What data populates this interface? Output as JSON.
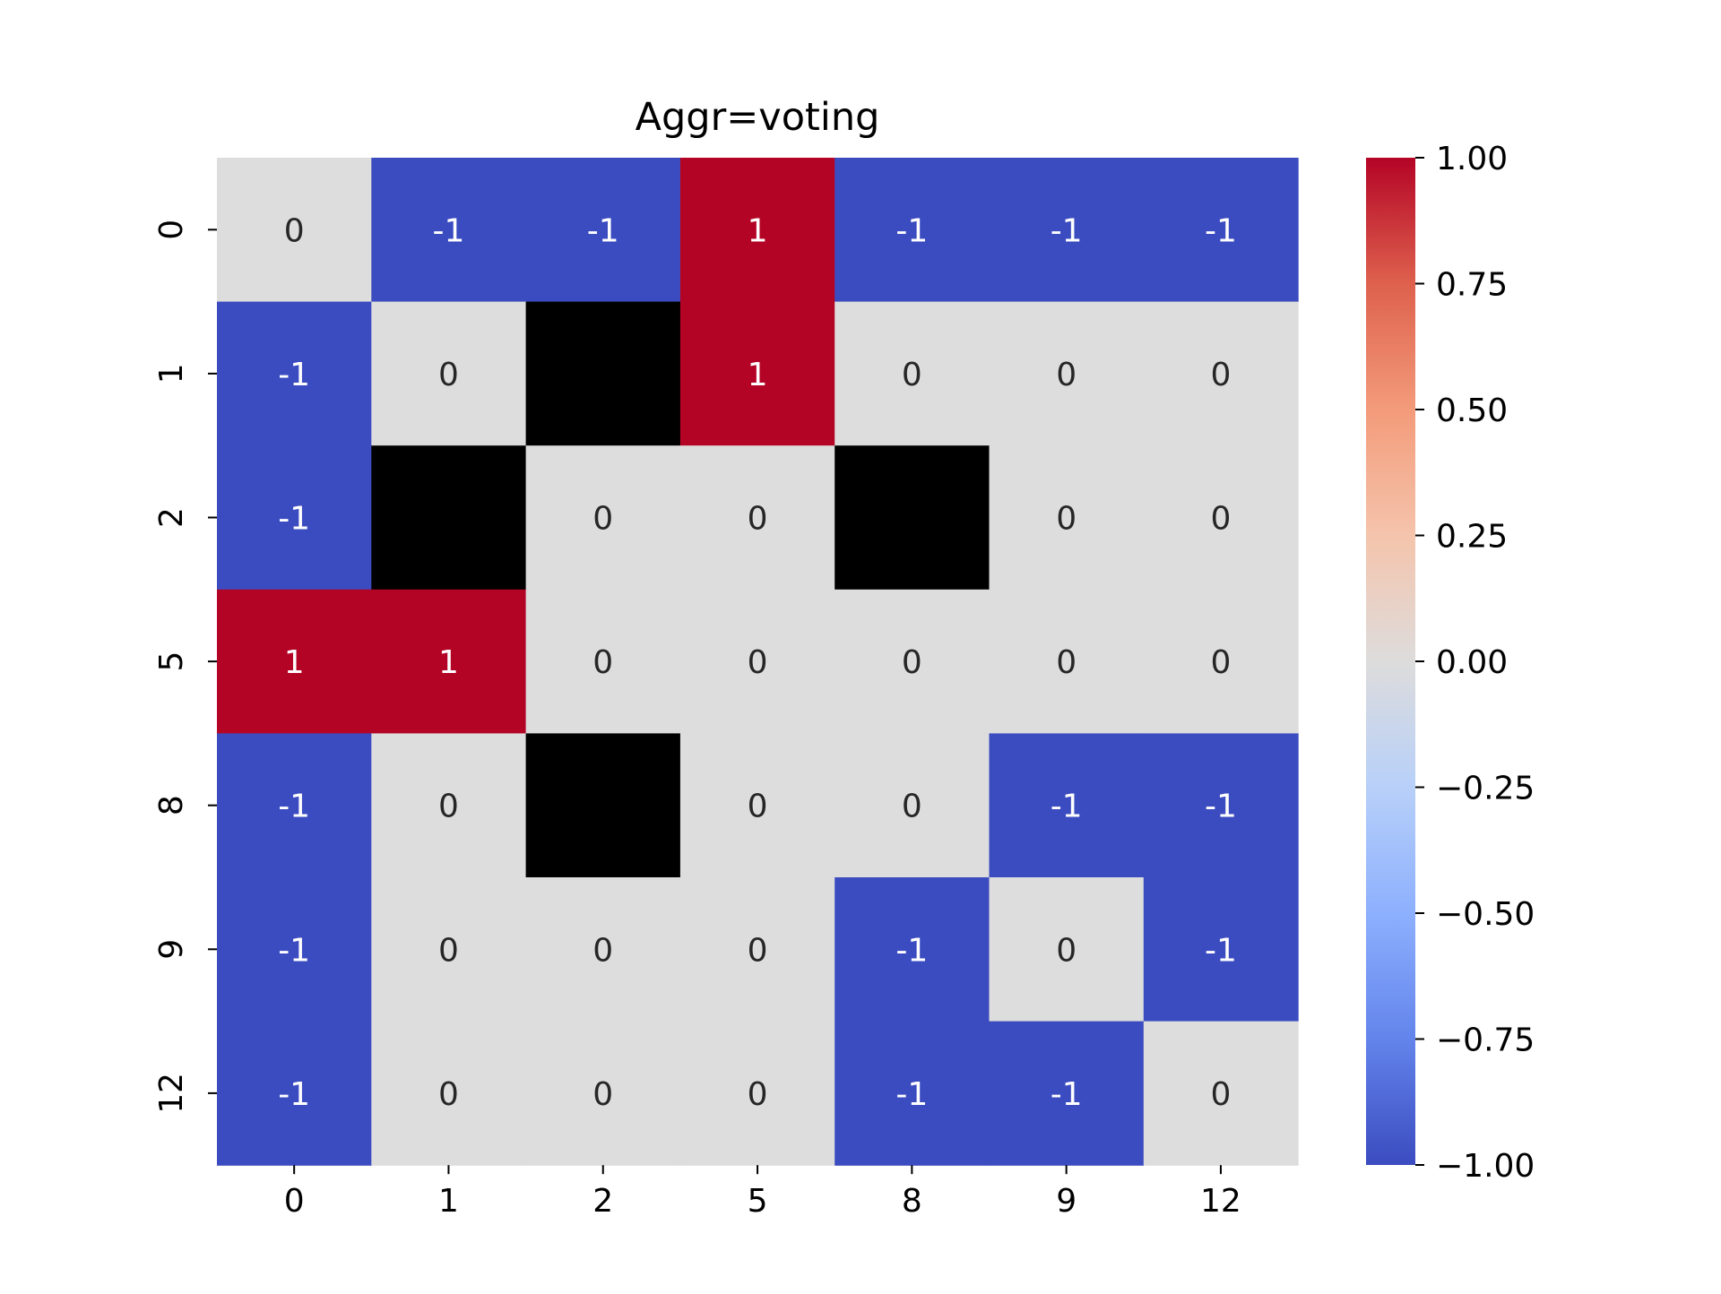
{
  "chart_data": {
    "type": "heatmap",
    "title": "Aggr=voting",
    "xlabel": "",
    "ylabel": "",
    "x_categories": [
      "0",
      "1",
      "2",
      "5",
      "8",
      "9",
      "12"
    ],
    "y_categories": [
      "0",
      "1",
      "2",
      "5",
      "8",
      "9",
      "12"
    ],
    "values": [
      [
        0,
        -1,
        -1,
        1,
        -1,
        -1,
        -1
      ],
      [
        -1,
        0,
        null,
        1,
        0,
        0,
        0
      ],
      [
        -1,
        null,
        0,
        0,
        null,
        0,
        0
      ],
      [
        1,
        1,
        0,
        0,
        0,
        0,
        0
      ],
      [
        -1,
        0,
        null,
        0,
        0,
        -1,
        -1
      ],
      [
        -1,
        0,
        0,
        0,
        -1,
        0,
        -1
      ],
      [
        -1,
        0,
        0,
        0,
        -1,
        -1,
        0
      ]
    ],
    "missing_color": "#000000",
    "colormap": "coolwarm",
    "vmin": -1,
    "vmax": 1,
    "colorbar": {
      "ticks": [
        1.0,
        0.75,
        0.5,
        0.25,
        0.0,
        -0.25,
        -0.5,
        -0.75,
        -1.0
      ],
      "tick_labels": [
        "1.00",
        "0.75",
        "0.50",
        "0.25",
        "0.00",
        "−0.25",
        "−0.50",
        "−0.75",
        "−1.00"
      ],
      "placement": "right"
    },
    "colors": {
      "negative": "#3b4cc0",
      "neutral": "#dddddd",
      "positive": "#b40426"
    }
  }
}
